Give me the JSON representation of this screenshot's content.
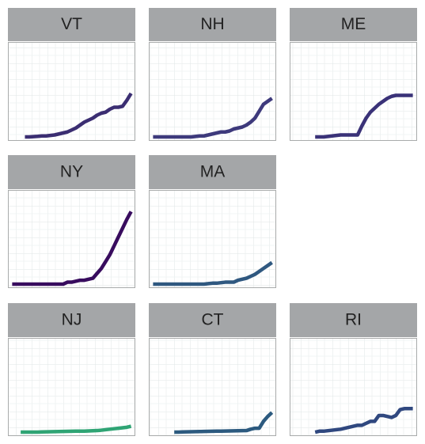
{
  "chart_data": [
    {
      "type": "line",
      "title": "VT",
      "color": "#3b2e72",
      "xlim": [
        0,
        30
      ],
      "ylim": [
        0,
        100
      ],
      "x": [
        4,
        5,
        6,
        7,
        8,
        9,
        10,
        11,
        12,
        13,
        14,
        15,
        16,
        17,
        18,
        19,
        20,
        21,
        22,
        23,
        24,
        25,
        26,
        27,
        28,
        29
      ],
      "values": [
        4,
        4,
        4.3,
        4.6,
        5,
        5,
        5.5,
        6,
        7,
        8,
        9,
        11,
        13,
        16,
        19,
        21,
        23,
        26,
        28,
        29,
        32,
        34,
        34,
        35,
        41,
        48
      ]
    },
    {
      "type": "line",
      "title": "NH",
      "color": "#3e3a7c",
      "xlim": [
        0,
        30
      ],
      "ylim": [
        0,
        100
      ],
      "x": [
        1,
        2,
        3,
        4,
        5,
        6,
        7,
        8,
        9,
        10,
        11,
        12,
        13,
        14,
        15,
        16,
        17,
        18,
        19,
        20,
        21,
        22,
        23,
        24,
        25,
        26,
        27,
        28,
        29
      ],
      "values": [
        4,
        4,
        4,
        4,
        4,
        4,
        4,
        4,
        4,
        4,
        4.5,
        5,
        5,
        6,
        7,
        8,
        9,
        9,
        10,
        12,
        13,
        14,
        16,
        19,
        23,
        30,
        37,
        40,
        43
      ]
    },
    {
      "type": "line",
      "title": "ME",
      "color": "#3a3278",
      "xlim": [
        0,
        30
      ],
      "ylim": [
        0,
        100
      ],
      "x": [
        6,
        7,
        8,
        9,
        10,
        11,
        12,
        13,
        14,
        15,
        16,
        17,
        18,
        19,
        20,
        21,
        22,
        23,
        24,
        25,
        26,
        27,
        28,
        29
      ],
      "values": [
        4,
        4,
        4,
        4.5,
        5,
        5.5,
        6,
        6,
        6,
        6,
        6,
        15,
        23,
        29,
        33,
        37,
        40,
        43,
        45,
        46,
        46,
        46,
        46,
        46
      ]
    },
    {
      "type": "line",
      "title": "NY",
      "color": "#380c5e",
      "xlim": [
        0,
        30
      ],
      "ylim": [
        0,
        100
      ],
      "x": [
        1,
        2,
        3,
        4,
        5,
        6,
        7,
        8,
        9,
        10,
        11,
        12,
        13,
        14,
        15,
        16,
        17,
        18,
        19,
        20,
        21,
        22,
        23,
        24,
        25,
        26,
        27,
        28,
        29
      ],
      "values": [
        4,
        4,
        4,
        4,
        4,
        4,
        4,
        4,
        4,
        4,
        4,
        4,
        4,
        6,
        6,
        7,
        8,
        8,
        9,
        10,
        15,
        20,
        27,
        34,
        43,
        52,
        61,
        70,
        78
      ]
    },
    {
      "type": "line",
      "title": "MA",
      "color": "#2f5880",
      "xlim": [
        0,
        30
      ],
      "ylim": [
        0,
        100
      ],
      "x": [
        1,
        2,
        3,
        4,
        5,
        6,
        7,
        8,
        9,
        10,
        11,
        12,
        13,
        14,
        15,
        16,
        17,
        18,
        19,
        20,
        21,
        22,
        23,
        24,
        25,
        26,
        27,
        28,
        29
      ],
      "values": [
        4,
        4,
        4,
        4,
        4,
        4,
        4,
        4,
        4,
        4,
        4,
        4,
        4,
        4.5,
        5,
        5,
        5.5,
        6,
        6,
        6,
        8,
        9,
        10,
        12,
        14,
        17,
        20,
        23,
        26
      ]
    },
    {
      "type": "line",
      "title": "NJ",
      "color": "#2fa474",
      "xlim": [
        0,
        30
      ],
      "ylim": [
        0,
        100
      ],
      "x": [
        3,
        4,
        5,
        6,
        7,
        8,
        9,
        10,
        11,
        12,
        13,
        14,
        15,
        16,
        17,
        18,
        19,
        20,
        21,
        22,
        23,
        24,
        25,
        26,
        27,
        28,
        29
      ],
      "values": [
        4,
        4,
        4,
        4,
        4,
        4.2,
        4.3,
        4.4,
        4.5,
        4.6,
        4.7,
        4.8,
        4.9,
        5,
        5,
        5,
        5.2,
        5.4,
        5.6,
        6,
        6.5,
        7,
        7.5,
        8,
        8.5,
        9,
        10
      ]
    },
    {
      "type": "line",
      "title": "CT",
      "color": "#2c5a7f",
      "xlim": [
        0,
        30
      ],
      "ylim": [
        0,
        100
      ],
      "x": [
        6,
        7,
        8,
        9,
        10,
        11,
        12,
        13,
        14,
        15,
        16,
        17,
        18,
        19,
        20,
        21,
        22,
        23,
        24,
        25,
        26,
        27,
        28,
        29
      ],
      "values": [
        4,
        4,
        4.2,
        4.3,
        4.4,
        4.5,
        4.6,
        4.7,
        4.8,
        4.9,
        5,
        5,
        5.1,
        5.2,
        5.3,
        5.4,
        5.5,
        5.6,
        7,
        8,
        8,
        15,
        20,
        24
      ]
    },
    {
      "type": "line",
      "title": "RI",
      "color": "#30487f",
      "xlim": [
        0,
        30
      ],
      "ylim": [
        0,
        100
      ],
      "x": [
        6,
        7,
        8,
        9,
        10,
        11,
        12,
        13,
        14,
        15,
        16,
        17,
        18,
        19,
        20,
        21,
        22,
        23,
        24,
        25,
        26,
        27,
        28,
        29
      ],
      "values": [
        4,
        5,
        5,
        5.5,
        6,
        6.5,
        7,
        8,
        9,
        10,
        11,
        11,
        13,
        15,
        15,
        21,
        21,
        20,
        19,
        21,
        27,
        28,
        28,
        28
      ]
    }
  ]
}
